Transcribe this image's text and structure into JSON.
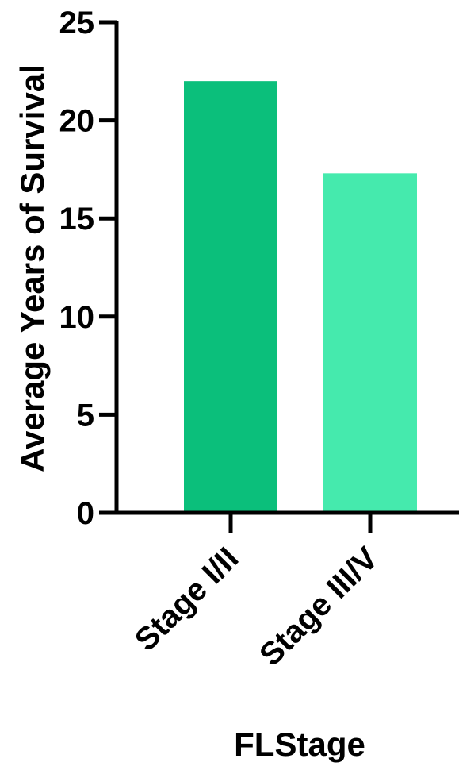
{
  "chart_data": {
    "type": "bar",
    "categories": [
      "Stage I/II",
      "Stage III/V"
    ],
    "values": [
      22,
      17.3
    ],
    "colors": [
      "#0bbf7b",
      "#45eaad"
    ],
    "title": "",
    "xlabel": "FLStage",
    "ylabel": "Average Years of  Survival",
    "ylim": [
      0,
      25
    ],
    "yticks": [
      0,
      5,
      10,
      15,
      20,
      25
    ],
    "grid": false,
    "legend": "none"
  }
}
